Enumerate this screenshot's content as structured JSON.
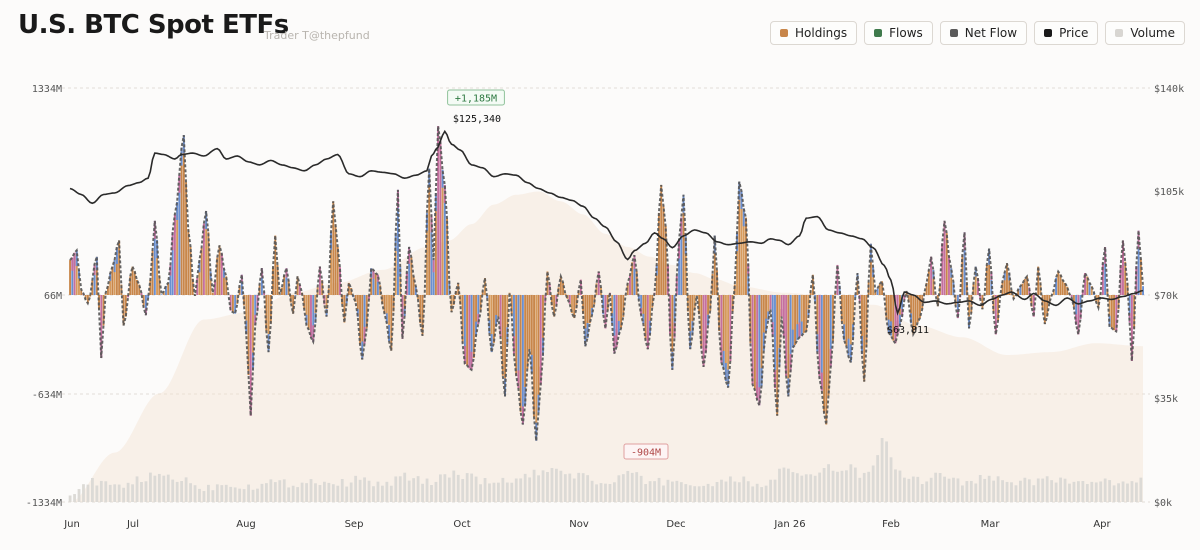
{
  "header": {
    "title": "U.S. BTC Spot ETFs",
    "subtitle": "Trader T@thepfund"
  },
  "legend": [
    {
      "label": "Holdings",
      "color": "#c8864a"
    },
    {
      "label": "Flows",
      "color": "#3f7a4c"
    },
    {
      "label": "Net Flow",
      "color": "#5a5a5a"
    },
    {
      "label": "Price",
      "color": "#1a1a1a"
    },
    {
      "label": "Volume",
      "color": "#d8d6d2"
    }
  ],
  "chart_data": {
    "type": "bar",
    "x_tick_labels": [
      "Jun",
      "Jul",
      "Aug",
      "Sep",
      "Oct",
      "Nov",
      "Dec",
      "Jan 26",
      "Feb",
      "Mar",
      "Apr"
    ],
    "y_left_tick_labels": [
      "1334M",
      "66M",
      "-634M",
      "-1334M"
    ],
    "y_right_tick_labels": [
      "$140k",
      "$105k",
      "$70k",
      "$35k",
      "$0k"
    ],
    "y_left_range_musd": [
      -1334,
      1334
    ],
    "y_right_range_usd": [
      0,
      140000
    ],
    "annotations": {
      "max_flow": "+1,185M",
      "max_price": "$125,340",
      "min_flow": "-904M",
      "min_price": "$63,811"
    },
    "net_flow_keypoints_musd": [
      [
        0,
        280
      ],
      [
        3,
        340
      ],
      [
        5,
        100
      ],
      [
        8,
        10
      ],
      [
        12,
        300
      ],
      [
        14,
        -360
      ],
      [
        16,
        80
      ],
      [
        19,
        240
      ],
      [
        22,
        400
      ],
      [
        24,
        -140
      ],
      [
        28,
        240
      ],
      [
        31,
        130
      ],
      [
        34,
        -70
      ],
      [
        36,
        160
      ],
      [
        38,
        520
      ],
      [
        41,
        70
      ],
      [
        44,
        140
      ],
      [
        47,
        560
      ],
      [
        51,
        1045
      ],
      [
        53,
        470
      ],
      [
        56,
        60
      ],
      [
        58,
        280
      ],
      [
        61,
        580
      ],
      [
        64,
        80
      ],
      [
        67,
        370
      ],
      [
        70,
        180
      ],
      [
        72,
        -40
      ],
      [
        74,
        -60
      ],
      [
        77,
        190
      ],
      [
        79,
        -200
      ],
      [
        81,
        -750
      ],
      [
        83,
        -140
      ],
      [
        86,
        230
      ],
      [
        89,
        -320
      ],
      [
        92,
        430
      ],
      [
        94,
        70
      ],
      [
        97,
        230
      ],
      [
        100,
        -60
      ],
      [
        102,
        180
      ],
      [
        104,
        80
      ],
      [
        106,
        -140
      ],
      [
        109,
        -250
      ],
      [
        112,
        240
      ],
      [
        115,
        -80
      ],
      [
        118,
        640
      ],
      [
        120,
        360
      ],
      [
        123,
        -120
      ],
      [
        125,
        140
      ],
      [
        128,
        20
      ],
      [
        131,
        -370
      ],
      [
        133,
        -160
      ],
      [
        135,
        230
      ],
      [
        138,
        190
      ],
      [
        141,
        -60
      ],
      [
        144,
        -310
      ],
      [
        147,
        710
      ],
      [
        149,
        -230
      ],
      [
        152,
        360
      ],
      [
        155,
        120
      ],
      [
        158,
        -210
      ],
      [
        161,
        840
      ],
      [
        163,
        280
      ],
      [
        165,
        1100
      ],
      [
        168,
        740
      ],
      [
        171,
        -50
      ],
      [
        174,
        140
      ],
      [
        177,
        -400
      ],
      [
        180,
        -440
      ],
      [
        183,
        -130
      ],
      [
        186,
        170
      ],
      [
        189,
        -320
      ],
      [
        192,
        -80
      ],
      [
        195,
        -620
      ],
      [
        197,
        80
      ],
      [
        200,
        -480
      ],
      [
        203,
        -810
      ],
      [
        206,
        -300
      ],
      [
        209,
        -920
      ],
      [
        211,
        -540
      ],
      [
        214,
        210
      ],
      [
        217,
        -80
      ],
      [
        220,
        180
      ],
      [
        223,
        40
      ],
      [
        226,
        -90
      ],
      [
        229,
        160
      ],
      [
        231,
        -280
      ],
      [
        234,
        -70
      ],
      [
        237,
        210
      ],
      [
        240,
        -160
      ],
      [
        242,
        80
      ],
      [
        244,
        -330
      ],
      [
        247,
        -160
      ],
      [
        250,
        140
      ],
      [
        253,
        310
      ],
      [
        256,
        -70
      ],
      [
        259,
        -300
      ],
      [
        262,
        80
      ],
      [
        265,
        740
      ],
      [
        267,
        490
      ],
      [
        270,
        -440
      ],
      [
        273,
        400
      ],
      [
        275,
        680
      ],
      [
        278,
        -300
      ],
      [
        281,
        60
      ],
      [
        284,
        -420
      ],
      [
        287,
        -40
      ],
      [
        289,
        430
      ],
      [
        292,
        -390
      ],
      [
        295,
        -560
      ],
      [
        298,
        130
      ],
      [
        300,
        760
      ],
      [
        303,
        540
      ],
      [
        306,
        -540
      ],
      [
        309,
        -680
      ],
      [
        312,
        -180
      ],
      [
        314,
        -30
      ],
      [
        317,
        -750
      ],
      [
        319,
        -80
      ],
      [
        322,
        -620
      ],
      [
        324,
        -290
      ],
      [
        327,
        -220
      ],
      [
        330,
        -180
      ],
      [
        333,
        190
      ],
      [
        336,
        -500
      ],
      [
        339,
        -810
      ],
      [
        341,
        -420
      ],
      [
        344,
        250
      ],
      [
        347,
        -240
      ],
      [
        350,
        -390
      ],
      [
        353,
        200
      ],
      [
        356,
        -520
      ],
      [
        359,
        380
      ],
      [
        361,
        90
      ],
      [
        364,
        150
      ],
      [
        367,
        -190
      ],
      [
        370,
        -260
      ],
      [
        372,
        -140
      ],
      [
        375,
        90
      ],
      [
        378,
        -200
      ],
      [
        381,
        -90
      ],
      [
        384,
        140
      ],
      [
        386,
        300
      ],
      [
        389,
        -10
      ],
      [
        392,
        520
      ],
      [
        395,
        230
      ],
      [
        398,
        -90
      ],
      [
        401,
        450
      ],
      [
        403,
        -160
      ],
      [
        406,
        240
      ],
      [
        409,
        -30
      ],
      [
        412,
        350
      ],
      [
        415,
        -200
      ],
      [
        418,
        150
      ],
      [
        420,
        260
      ],
      [
        423,
        40
      ],
      [
        426,
        120
      ],
      [
        429,
        180
      ],
      [
        432,
        -80
      ],
      [
        434,
        240
      ],
      [
        437,
        -130
      ],
      [
        440,
        60
      ],
      [
        443,
        210
      ],
      [
        446,
        140
      ],
      [
        449,
        50
      ],
      [
        452,
        -200
      ],
      [
        455,
        200
      ],
      [
        458,
        120
      ],
      [
        461,
        -20
      ],
      [
        464,
        360
      ],
      [
        466,
        -150
      ],
      [
        469,
        -180
      ],
      [
        472,
        400
      ],
      [
        474,
        140
      ],
      [
        476,
        -380
      ],
      [
        479,
        460
      ],
      [
        481,
        120
      ]
    ],
    "price_keypoints_usd": [
      [
        0,
        106000
      ],
      [
        5,
        104000
      ],
      [
        10,
        101000
      ],
      [
        15,
        104000
      ],
      [
        20,
        104500
      ],
      [
        26,
        107000
      ],
      [
        31,
        108000
      ],
      [
        35,
        109500
      ],
      [
        38,
        118000
      ],
      [
        42,
        117500
      ],
      [
        47,
        116000
      ],
      [
        50,
        117500
      ],
      [
        55,
        118000
      ],
      [
        60,
        117000
      ],
      [
        66,
        119500
      ],
      [
        70,
        116000
      ],
      [
        75,
        117000
      ],
      [
        80,
        115000
      ],
      [
        85,
        114000
      ],
      [
        90,
        115500
      ],
      [
        95,
        114000
      ],
      [
        100,
        113000
      ],
      [
        105,
        112000
      ],
      [
        110,
        114000
      ],
      [
        115,
        116000
      ],
      [
        120,
        117500
      ],
      [
        125,
        111000
      ],
      [
        130,
        110000
      ],
      [
        135,
        112000
      ],
      [
        140,
        111500
      ],
      [
        145,
        111000
      ],
      [
        150,
        109500
      ],
      [
        155,
        110500
      ],
      [
        160,
        112000
      ],
      [
        162,
        117000
      ],
      [
        165,
        120000
      ],
      [
        167,
        124000
      ],
      [
        168,
        125340
      ],
      [
        171,
        121000
      ],
      [
        175,
        119000
      ],
      [
        180,
        114000
      ],
      [
        185,
        113000
      ],
      [
        190,
        110000
      ],
      [
        195,
        111000
      ],
      [
        200,
        110500
      ],
      [
        205,
        108000
      ],
      [
        210,
        106000
      ],
      [
        215,
        104500
      ],
      [
        220,
        103000
      ],
      [
        225,
        102000
      ],
      [
        230,
        100000
      ],
      [
        235,
        96000
      ],
      [
        240,
        93000
      ],
      [
        245,
        88000
      ],
      [
        250,
        82000
      ],
      [
        253,
        85000
      ],
      [
        258,
        87500
      ],
      [
        262,
        91000
      ],
      [
        266,
        89000
      ],
      [
        270,
        86000
      ],
      [
        275,
        90000
      ],
      [
        280,
        92000
      ],
      [
        285,
        91000
      ],
      [
        290,
        88000
      ],
      [
        295,
        87000
      ],
      [
        300,
        87500
      ],
      [
        305,
        88000
      ],
      [
        310,
        87500
      ],
      [
        314,
        89000
      ],
      [
        318,
        88500
      ],
      [
        322,
        87000
      ],
      [
        327,
        90000
      ],
      [
        330,
        96000
      ],
      [
        335,
        96500
      ],
      [
        340,
        92000
      ],
      [
        345,
        91000
      ],
      [
        350,
        90000
      ],
      [
        355,
        89000
      ],
      [
        360,
        86000
      ],
      [
        365,
        80000
      ],
      [
        368,
        75000
      ],
      [
        371,
        63811
      ],
      [
        374,
        71000
      ],
      [
        378,
        70000
      ],
      [
        383,
        67500
      ],
      [
        388,
        68000
      ],
      [
        393,
        67000
      ],
      [
        398,
        67500
      ],
      [
        403,
        68000
      ],
      [
        408,
        66500
      ],
      [
        413,
        68500
      ],
      [
        418,
        70000
      ],
      [
        422,
        71000
      ],
      [
        428,
        68500
      ],
      [
        432,
        70500
      ],
      [
        437,
        68000
      ],
      [
        442,
        66500
      ],
      [
        447,
        69000
      ],
      [
        452,
        67000
      ],
      [
        457,
        68000
      ],
      [
        462,
        69000
      ],
      [
        467,
        68500
      ],
      [
        472,
        69500
      ],
      [
        477,
        70500
      ],
      [
        481,
        71500
      ]
    ],
    "volume_keypoints_musd": [
      [
        0,
        -1260
      ],
      [
        10,
        -1200
      ],
      [
        20,
        -1230
      ],
      [
        30,
        -1190
      ],
      [
        40,
        -1150
      ],
      [
        50,
        -1180
      ],
      [
        60,
        -1240
      ],
      [
        70,
        -1210
      ],
      [
        80,
        -1230
      ],
      [
        90,
        -1200
      ],
      [
        100,
        -1210
      ],
      [
        110,
        -1190
      ],
      [
        120,
        -1210
      ],
      [
        130,
        -1180
      ],
      [
        140,
        -1220
      ],
      [
        150,
        -1160
      ],
      [
        160,
        -1200
      ],
      [
        170,
        -1140
      ],
      [
        180,
        -1170
      ],
      [
        190,
        -1210
      ],
      [
        200,
        -1180
      ],
      [
        210,
        -1140
      ],
      [
        220,
        -1130
      ],
      [
        230,
        -1160
      ],
      [
        240,
        -1220
      ],
      [
        250,
        -1140
      ],
      [
        260,
        -1200
      ],
      [
        270,
        -1190
      ],
      [
        280,
        -1220
      ],
      [
        290,
        -1210
      ],
      [
        300,
        -1180
      ],
      [
        310,
        -1230
      ],
      [
        320,
        -1120
      ],
      [
        330,
        -1170
      ],
      [
        340,
        -1100
      ],
      [
        345,
        -1130
      ],
      [
        350,
        -1090
      ],
      [
        355,
        -1170
      ],
      [
        360,
        -1080
      ],
      [
        365,
        -900
      ],
      [
        370,
        -1140
      ],
      [
        380,
        -1190
      ],
      [
        390,
        -1140
      ],
      [
        400,
        -1200
      ],
      [
        410,
        -1170
      ],
      [
        420,
        -1190
      ],
      [
        430,
        -1200
      ],
      [
        440,
        -1170
      ],
      [
        450,
        -1210
      ],
      [
        460,
        -1190
      ],
      [
        470,
        -1220
      ],
      [
        481,
        -1180
      ]
    ],
    "holdings_area_keypoints": [
      [
        0,
        -1334
      ],
      [
        20,
        -1000
      ],
      [
        40,
        -600
      ],
      [
        60,
        -100
      ],
      [
        80,
        -50
      ],
      [
        100,
        80
      ],
      [
        120,
        140
      ],
      [
        140,
        220
      ],
      [
        160,
        360
      ],
      [
        170,
        400
      ],
      [
        180,
        500
      ],
      [
        190,
        620
      ],
      [
        200,
        680
      ],
      [
        210,
        700
      ],
      [
        220,
        640
      ],
      [
        230,
        560
      ],
      [
        240,
        440
      ],
      [
        250,
        360
      ],
      [
        260,
        300
      ],
      [
        270,
        250
      ],
      [
        280,
        200
      ],
      [
        290,
        160
      ],
      [
        300,
        120
      ],
      [
        320,
        80
      ],
      [
        340,
        60
      ],
      [
        360,
        0
      ],
      [
        380,
        -140
      ],
      [
        400,
        -220
      ],
      [
        420,
        -340
      ],
      [
        440,
        -320
      ],
      [
        460,
        -260
      ],
      [
        481,
        -280
      ]
    ]
  }
}
